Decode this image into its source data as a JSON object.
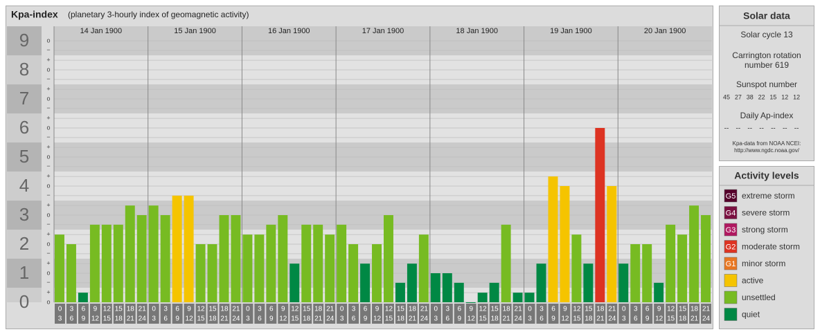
{
  "chart_data": {
    "type": "bar",
    "title": "Kpa-index",
    "subtitle": "(planetary 3-hourly index of geomagnetic activity)",
    "days": [
      "14 Jan 1900",
      "15 Jan 1900",
      "16 Jan 1900",
      "17 Jan 1900",
      "18 Jan 1900",
      "19 Jan 1900",
      "20 Jan 1900"
    ],
    "hour_starts": [
      0,
      3,
      6,
      9,
      12,
      15,
      18,
      21
    ],
    "hour_ends": [
      3,
      6,
      9,
      12,
      15,
      18,
      21,
      24
    ],
    "values": [
      2.33,
      2,
      0.33,
      2.67,
      2.67,
      2.67,
      3.33,
      3,
      3.33,
      3,
      3.67,
      3.67,
      2,
      2,
      3,
      3,
      2.33,
      2.33,
      2.67,
      3,
      1.33,
      2.67,
      2.67,
      2.33,
      2.67,
      2,
      1.33,
      2,
      3,
      0.67,
      1.33,
      2.33,
      1,
      1,
      0.67,
      0,
      0.33,
      0.67,
      2.67,
      0.33,
      0.33,
      1.33,
      4.33,
      4,
      2.33,
      1.33,
      6,
      4,
      1.33,
      2,
      2,
      0.67,
      2.67,
      2.33,
      3.33,
      3
    ],
    "colors": [
      "#77bb22",
      "#77bb22",
      "#008844",
      "#77bb22",
      "#77bb22",
      "#77bb22",
      "#77bb22",
      "#77bb22",
      "#77bb22",
      "#77bb22",
      "#f5c400",
      "#f5c400",
      "#77bb22",
      "#77bb22",
      "#77bb22",
      "#77bb22",
      "#77bb22",
      "#77bb22",
      "#77bb22",
      "#77bb22",
      "#008844",
      "#77bb22",
      "#77bb22",
      "#77bb22",
      "#77bb22",
      "#77bb22",
      "#008844",
      "#77bb22",
      "#77bb22",
      "#008844",
      "#008844",
      "#77bb22",
      "#008844",
      "#008844",
      "#008844",
      "#008844",
      "#008844",
      "#008844",
      "#77bb22",
      "#008844",
      "#008844",
      "#008844",
      "#f5c400",
      "#f5c400",
      "#77bb22",
      "#008844",
      "#dd3322",
      "#f5c400",
      "#008844",
      "#77bb22",
      "#77bb22",
      "#008844",
      "#77bb22",
      "#77bb22",
      "#77bb22",
      "#77bb22"
    ],
    "ylim": [
      0,
      9.5
    ],
    "yticks": [
      0,
      1,
      2,
      3,
      4,
      5,
      6,
      7,
      8,
      9
    ],
    "minor_yticks": [
      {
        "value": 0,
        "label": "o"
      },
      {
        "value": 0.33,
        "label": "+"
      },
      {
        "value": 0.67,
        "label": "−"
      },
      {
        "value": 1,
        "label": "o"
      },
      {
        "value": 1.33,
        "label": "+"
      },
      {
        "value": 1.67,
        "label": "−"
      },
      {
        "value": 2,
        "label": "o"
      },
      {
        "value": 2.33,
        "label": "+"
      },
      {
        "value": 2.67,
        "label": "−"
      },
      {
        "value": 3,
        "label": "o"
      },
      {
        "value": 3.33,
        "label": "+"
      },
      {
        "value": 3.67,
        "label": "−"
      },
      {
        "value": 4,
        "label": "o"
      },
      {
        "value": 4.33,
        "label": "+"
      },
      {
        "value": 4.67,
        "label": "−"
      },
      {
        "value": 5,
        "label": "o"
      },
      {
        "value": 5.33,
        "label": "+"
      },
      {
        "value": 5.67,
        "label": "−"
      },
      {
        "value": 6,
        "label": "o"
      },
      {
        "value": 6.33,
        "label": "+"
      },
      {
        "value": 6.67,
        "label": "−"
      },
      {
        "value": 7,
        "label": "o"
      },
      {
        "value": 7.33,
        "label": "+"
      },
      {
        "value": 7.67,
        "label": "−"
      },
      {
        "value": 8,
        "label": "o"
      },
      {
        "value": 8.33,
        "label": "+"
      },
      {
        "value": 8.67,
        "label": "−"
      },
      {
        "value": 9,
        "label": "o"
      }
    ],
    "grid": true,
    "solar_data": {
      "title": "Solar data",
      "cycle": "Solar cycle 13",
      "carrington": [
        "Carrington rotation",
        "number 619"
      ],
      "sunspot_title": "Sunspot number",
      "sunspots": [
        45,
        27,
        38,
        22,
        15,
        12,
        12
      ],
      "ap_title": "Daily Ap-index",
      "ap": [
        "--",
        "--",
        "--",
        "--",
        "--",
        "--",
        "--"
      ],
      "source": [
        "Kpa-data from NOAA NCEI:",
        "http://www.ngdc.noaa.gov/"
      ]
    },
    "activity_levels": {
      "title": "Activity levels",
      "items": [
        {
          "code": "G5",
          "name": "extreme storm",
          "color": "#55002a"
        },
        {
          "code": "G4",
          "name": "severe storm",
          "color": "#7a1040"
        },
        {
          "code": "G3",
          "name": "strong storm",
          "color": "#b01860"
        },
        {
          "code": "G2",
          "name": "moderate storm",
          "color": "#dd3322"
        },
        {
          "code": "G1",
          "name": "minor storm",
          "color": "#e87722"
        },
        {
          "name": "active",
          "color": "#f5c400"
        },
        {
          "name": "unsettled",
          "color": "#77bb22"
        },
        {
          "name": "quiet",
          "color": "#008844"
        }
      ]
    }
  }
}
